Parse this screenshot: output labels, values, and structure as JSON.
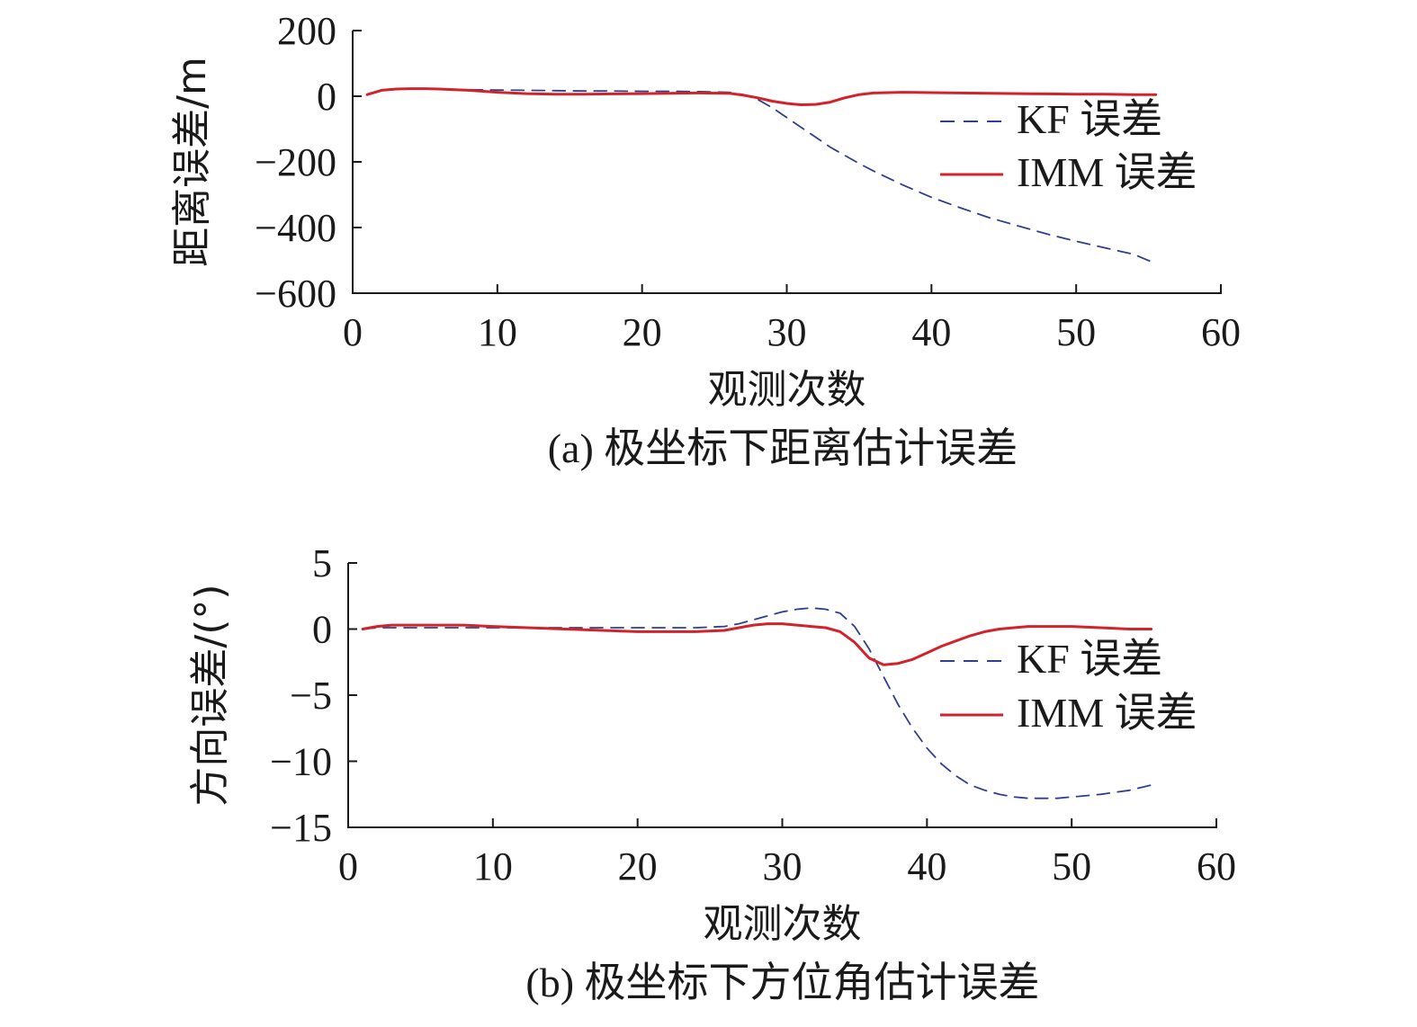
{
  "colors": {
    "kf": "#2e3f8f",
    "imm": "#d1232a",
    "axis": "#1a1a1a"
  },
  "chart_data": [
    {
      "type": "line",
      "caption": "(a) 极坐标下距离估计误差",
      "xlabel": "观测次数",
      "ylabel": "距离误差/m",
      "xlim": [
        0,
        60
      ],
      "ylim": [
        -600,
        200
      ],
      "xticks": [
        0,
        10,
        20,
        30,
        40,
        50,
        60
      ],
      "yticks": [
        200,
        0,
        -200,
        -400,
        -600
      ],
      "ytick_labels": [
        "200",
        "0",
        "−200",
        "−400",
        "−600"
      ],
      "legend_position": "right",
      "series": [
        {
          "name": "KF 误差",
          "style": "dashed",
          "x": [
            1,
            2,
            3,
            4,
            5,
            6,
            7,
            8,
            10,
            12,
            14,
            16,
            18,
            20,
            22,
            24,
            26,
            27,
            28,
            29,
            30,
            31,
            32,
            33,
            34,
            35,
            36,
            38,
            40,
            42,
            44,
            46,
            48,
            50,
            52,
            54,
            55.5
          ],
          "y": [
            5,
            18,
            22,
            23,
            23,
            22,
            21,
            20,
            19,
            18,
            17,
            16,
            16,
            15,
            15,
            14,
            12,
            5,
            -10,
            -35,
            -65,
            -95,
            -125,
            -155,
            -180,
            -205,
            -228,
            -270,
            -308,
            -340,
            -370,
            -395,
            -420,
            -442,
            -462,
            -482,
            -510
          ]
        },
        {
          "name": "IMM 误差",
          "style": "solid",
          "x": [
            1,
            2,
            3,
            4,
            5,
            6,
            7,
            8,
            10,
            12,
            14,
            16,
            18,
            20,
            22,
            24,
            26,
            27,
            28,
            29,
            30,
            31,
            32,
            33,
            34,
            35,
            36,
            38,
            40,
            42,
            44,
            46,
            48,
            50,
            52,
            54,
            55.5
          ],
          "y": [
            5,
            18,
            22,
            23,
            23,
            22,
            20,
            18,
            12,
            8,
            6,
            6,
            7,
            8,
            9,
            10,
            9,
            3,
            -5,
            -15,
            -22,
            -26,
            -25,
            -18,
            -5,
            5,
            10,
            12,
            11,
            10,
            9,
            8,
            7,
            6,
            6,
            5,
            5
          ]
        }
      ]
    },
    {
      "type": "line",
      "caption": "(b) 极坐标下方位角估计误差",
      "xlabel": "观测次数",
      "ylabel": "方向误差/(°)",
      "xlim": [
        0,
        60
      ],
      "ylim": [
        -15,
        5
      ],
      "xticks": [
        0,
        10,
        20,
        30,
        40,
        50,
        60
      ],
      "yticks": [
        5,
        0,
        -5,
        -10,
        -15
      ],
      "ytick_labels": [
        "5",
        "0",
        "−5",
        "−10",
        "−15"
      ],
      "legend_position": "right",
      "series": [
        {
          "name": "KF 误差",
          "style": "dashed",
          "x": [
            1,
            2,
            3,
            5,
            8,
            10,
            15,
            20,
            24,
            26,
            27,
            28,
            29,
            30,
            31,
            32,
            33,
            34,
            35,
            36,
            37,
            38,
            39,
            40,
            41,
            42,
            43,
            44,
            45,
            46,
            47,
            48,
            49,
            50,
            52,
            54,
            55.5
          ],
          "y": [
            0.0,
            0.1,
            0.1,
            0.1,
            0.1,
            0.1,
            0.1,
            0.1,
            0.1,
            0.2,
            0.4,
            0.7,
            1.0,
            1.3,
            1.5,
            1.6,
            1.5,
            1.2,
            0.2,
            -1.5,
            -3.6,
            -5.7,
            -7.5,
            -9.0,
            -10.2,
            -11.1,
            -11.8,
            -12.2,
            -12.5,
            -12.7,
            -12.8,
            -12.8,
            -12.8,
            -12.7,
            -12.5,
            -12.2,
            -11.8
          ]
        },
        {
          "name": "IMM 误差",
          "style": "solid",
          "x": [
            1,
            2,
            3,
            5,
            8,
            10,
            15,
            20,
            24,
            26,
            27,
            28,
            29,
            30,
            31,
            32,
            33,
            34,
            35,
            36,
            37,
            38,
            39,
            40,
            41,
            42,
            43,
            44,
            45,
            46,
            47,
            48,
            49,
            50,
            52,
            54,
            55.5
          ],
          "y": [
            0.0,
            0.2,
            0.3,
            0.3,
            0.3,
            0.2,
            0.0,
            -0.2,
            -0.2,
            -0.1,
            0.1,
            0.3,
            0.4,
            0.4,
            0.3,
            0.2,
            0.1,
            -0.2,
            -1.0,
            -2.2,
            -2.7,
            -2.6,
            -2.3,
            -1.8,
            -1.3,
            -0.9,
            -0.5,
            -0.2,
            0.0,
            0.1,
            0.2,
            0.2,
            0.2,
            0.2,
            0.1,
            0.0,
            0.0
          ]
        }
      ]
    }
  ]
}
